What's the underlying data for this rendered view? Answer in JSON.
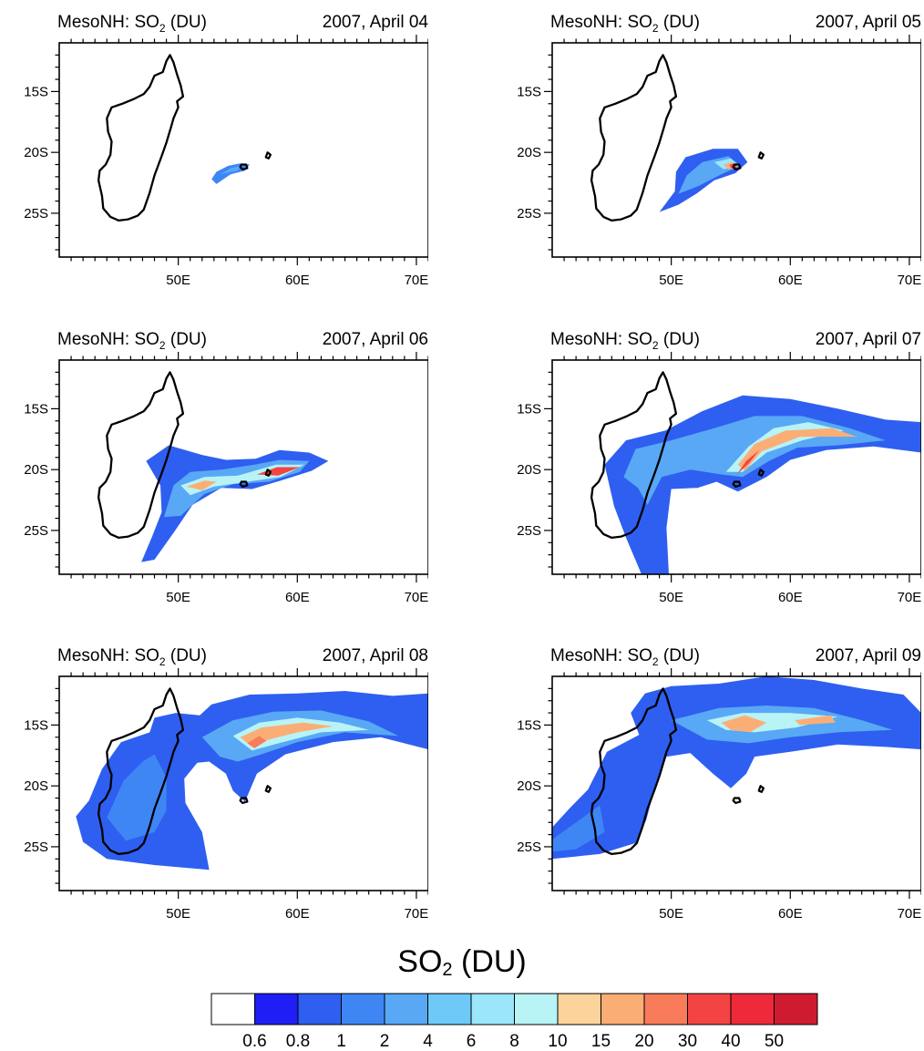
{
  "title_prefix": "MesoNH: SO",
  "title_sub": "2",
  "title_suffix": " (DU)",
  "panels": [
    {
      "date": "2007, April 04"
    },
    {
      "date": "2007, April 05"
    },
    {
      "date": "2007, April 06"
    },
    {
      "date": "2007, April 07"
    },
    {
      "date": "2007, April 08"
    },
    {
      "date": "2007, April 09"
    }
  ],
  "lat_ticks": [
    "15S",
    "20S",
    "25S"
  ],
  "lon_ticks": [
    "50E",
    "60E",
    "70E"
  ],
  "colorbar": {
    "title_main": "SO",
    "title_sub": "2",
    "title_unit": " (DU)",
    "labels": [
      "0.6",
      "0.8",
      "1",
      "2",
      "4",
      "6",
      "8",
      "10",
      "15",
      "20",
      "30",
      "40",
      "50"
    ],
    "colors": [
      "#ffffff",
      "#1e1ef5",
      "#2e5ff0",
      "#3f86f5",
      "#58a8f5",
      "#6ec9f8",
      "#9be6fb",
      "#b8f3f6",
      "#fdd39c",
      "#fbad76",
      "#f87b5a",
      "#f34343",
      "#ee2a3a",
      "#cf1b30"
    ]
  }
}
